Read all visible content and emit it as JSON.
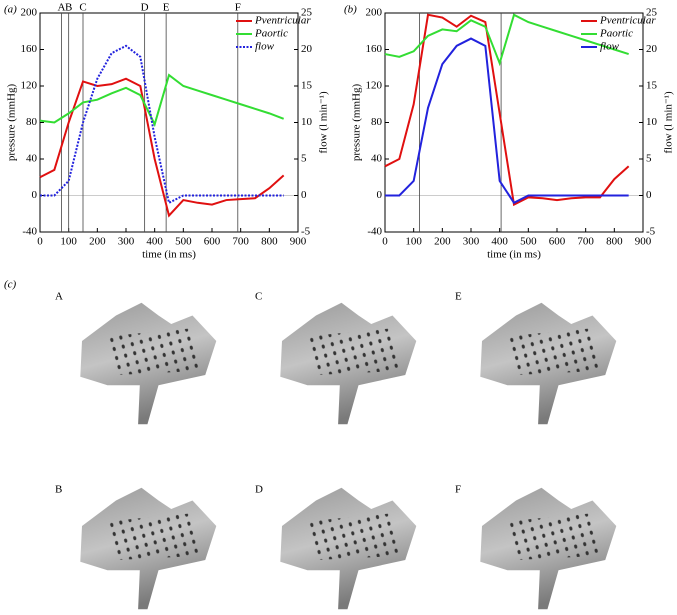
{
  "panel_labels": [
    "(a)",
    "(b)",
    "(c)"
  ],
  "photo_labels": [
    "A",
    "C",
    "E",
    "B",
    "D",
    "F"
  ],
  "chart_data": [
    {
      "type": "line",
      "xlabel": "time (in ms)",
      "ylabel": "pressure (mmHg)",
      "y2label": "flow (l min⁻¹)",
      "xlim": [
        0,
        900
      ],
      "xticks": [
        0,
        100,
        200,
        300,
        400,
        500,
        600,
        700,
        800,
        900
      ],
      "ylim": [
        -40,
        200
      ],
      "yticks": [
        -40,
        0,
        40,
        80,
        120,
        160,
        200
      ],
      "y2lim": [
        -5,
        25
      ],
      "y2ticks": [
        -5,
        0,
        5,
        10,
        15,
        20,
        25
      ],
      "legend": "upper right",
      "markers": [
        {
          "label": "A",
          "x": 75
        },
        {
          "label": "B",
          "x": 100
        },
        {
          "label": "C",
          "x": 150
        },
        {
          "label": "D",
          "x": 365
        },
        {
          "label": "E",
          "x": 440
        },
        {
          "label": "F",
          "x": 690
        }
      ],
      "x": [
        0,
        50,
        100,
        150,
        200,
        250,
        300,
        350,
        400,
        450,
        500,
        550,
        600,
        650,
        700,
        750,
        800,
        850
      ],
      "series": [
        {
          "name": "Pventricular",
          "color": "#e01010",
          "line_style": "solid",
          "values": [
            20,
            28,
            80,
            125,
            120,
            122,
            128,
            120,
            40,
            -22,
            -5,
            -8,
            -10,
            -5,
            -4,
            -3,
            8,
            22
          ]
        },
        {
          "name": "Paortic",
          "color": "#33dd33",
          "line_style": "solid",
          "values": [
            82,
            80,
            90,
            102,
            105,
            112,
            118,
            110,
            78,
            132,
            120,
            115,
            110,
            105,
            100,
            95,
            90,
            84
          ]
        },
        {
          "name": "flow",
          "color": "#2222dd",
          "line_style": "dotted",
          "axis": "y2",
          "values": [
            0,
            0,
            2,
            10,
            16,
            19.5,
            20.5,
            19,
            8,
            -1,
            0,
            0,
            0,
            0,
            0,
            0,
            0,
            0
          ]
        }
      ]
    },
    {
      "type": "line",
      "xlabel": "time (in ms)",
      "ylabel": "pressure (mmHg)",
      "y2label": "flow (l min⁻¹)",
      "xlim": [
        0,
        900
      ],
      "xticks": [
        0,
        100,
        200,
        300,
        400,
        500,
        600,
        700,
        800,
        900
      ],
      "ylim": [
        -40,
        200
      ],
      "yticks": [
        -40,
        0,
        40,
        80,
        120,
        160,
        200
      ],
      "y2lim": [
        -5,
        25
      ],
      "y2ticks": [
        -5,
        0,
        5,
        10,
        15,
        20,
        25
      ],
      "legend": "upper right",
      "vlines": [
        120,
        405
      ],
      "x": [
        0,
        50,
        100,
        150,
        200,
        250,
        300,
        350,
        400,
        450,
        500,
        550,
        600,
        650,
        700,
        750,
        800,
        850
      ],
      "series": [
        {
          "name": "Pventricular",
          "color": "#e01010",
          "line_style": "solid",
          "values": [
            32,
            40,
            100,
            198,
            195,
            185,
            197,
            190,
            90,
            -10,
            -2,
            -3,
            -5,
            -3,
            -2,
            -2,
            18,
            32
          ]
        },
        {
          "name": "Paortic",
          "color": "#33dd33",
          "line_style": "solid",
          "values": [
            155,
            152,
            158,
            175,
            182,
            180,
            192,
            185,
            145,
            198,
            190,
            185,
            180,
            175,
            170,
            165,
            160,
            155
          ]
        },
        {
          "name": "flow",
          "color": "#2222dd",
          "line_style": "solid",
          "axis": "y2",
          "values": [
            0,
            0,
            2,
            12,
            18,
            20.5,
            21.5,
            20.5,
            2,
            -1,
            0,
            0,
            0,
            0,
            0,
            0,
            0,
            0
          ]
        }
      ]
    }
  ]
}
